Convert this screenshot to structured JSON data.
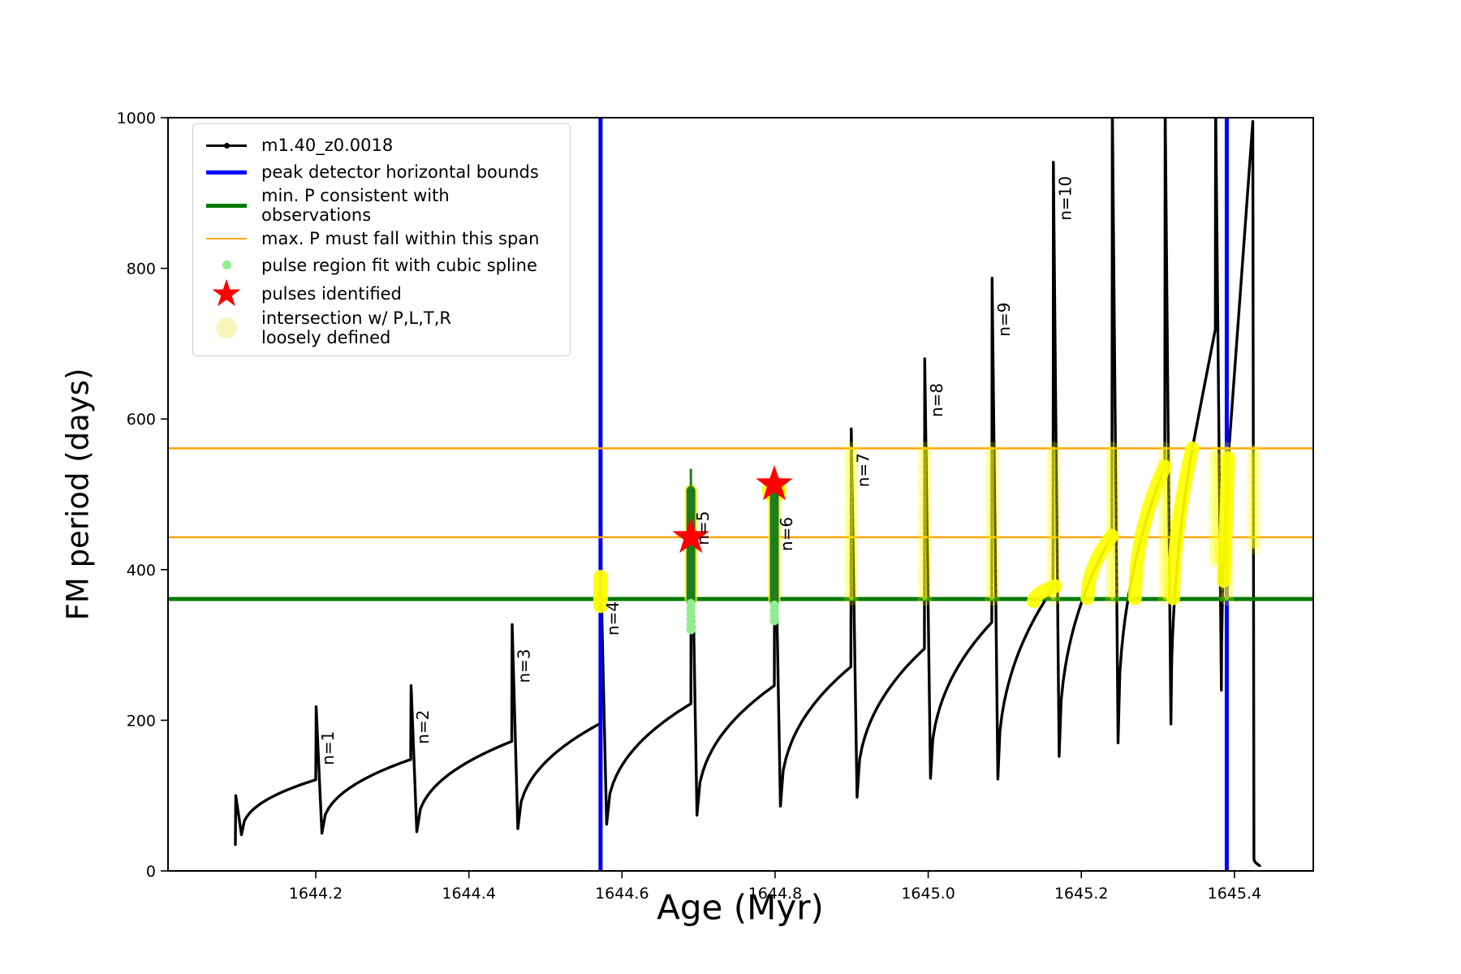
{
  "figure": {
    "xlabel": "Age (Myr)",
    "ylabel": "FM period (days)",
    "x_ticks": [
      1644.2,
      1644.4,
      1644.6,
      1644.8,
      1645.0,
      1645.2,
      1645.4
    ],
    "x_tick_labels": [
      "1644.2",
      "1644.4",
      "1644.6",
      "1644.8",
      "1645.0",
      "1645.2",
      "1645.4"
    ],
    "y_ticks": [
      0,
      200,
      400,
      600,
      800,
      1000
    ],
    "y_tick_labels": [
      "0",
      "200",
      "400",
      "600",
      "800",
      "1000"
    ],
    "background": "#ffffff",
    "spine_color": "#000000"
  },
  "legend": {
    "items": [
      {
        "label": "m1.40_z0.0018",
        "swatch": "line-dot",
        "color": "#000000"
      },
      {
        "label": "peak detector horizontal bounds",
        "swatch": "thick-line",
        "color": "#0000ff"
      },
      {
        "label": "min. P consistent with observations",
        "swatch": "thick-line",
        "color": "#007a00"
      },
      {
        "label": "max. P must fall within this span",
        "swatch": "line",
        "color": "#ffa500"
      },
      {
        "label": "pulse region fit with cubic spline",
        "swatch": "dot",
        "color": "#90ee90"
      },
      {
        "label": "pulses identified",
        "swatch": "star",
        "color": "#ff0000"
      },
      {
        "label": "intersection w/ P,L,T,R\nloosely defined",
        "swatch": "big-dot",
        "color": "#f6f6bb"
      }
    ]
  },
  "chart_data": {
    "type": "line",
    "title": "",
    "xlabel": "Age (Myr)",
    "ylabel": "FM period (days)",
    "xlim": [
      1644.007,
      1645.503
    ],
    "ylim": [
      0,
      1000
    ],
    "grid": false,
    "legend_position": "upper left",
    "series_name": "m1.40_z0.0018",
    "colors": {
      "curve": "#000000",
      "peak_bounds": "#0000ff",
      "min_p": "#007a00",
      "max_p_span": "#ffa500",
      "spline_fit": "#90ee90",
      "spline_bar": "#1e7d1e",
      "pulse_star": "#ff0000",
      "intersection": "#ffff00"
    },
    "hlines": [
      {
        "name": "max_p_upper",
        "y": 561,
        "color": "#ffa500",
        "width": 2.5
      },
      {
        "name": "max_p_lower",
        "y": 443,
        "color": "#ffa500",
        "width": 2.5
      },
      {
        "name": "min_p",
        "y": 361,
        "color": "#007a00",
        "width": 5
      }
    ],
    "vlines": [
      {
        "name": "peak_bound_left",
        "x": 1644.572,
        "color": "#0000ff",
        "width": 5
      },
      {
        "name": "peak_bound_right",
        "x": 1645.39,
        "color": "#0000ff",
        "width": 5
      }
    ],
    "curve_segments": [
      {
        "a0": 1644.095,
        "p0": 35,
        "a1": 1644.0955,
        "p1": 100,
        "exp": 1
      },
      {
        "a0": 1644.0955,
        "p0": 100,
        "a1": 1644.103,
        "p1": 48,
        "exp": 1
      },
      {
        "a0": 1644.103,
        "p0": 48,
        "a1": 1644.2,
        "p1": 121,
        "exp": 0.42
      },
      {
        "a0": 1644.2,
        "p0": 121,
        "a1": 1644.2005,
        "p1": 218,
        "exp": 1
      },
      {
        "a0": 1644.2005,
        "p0": 218,
        "a1": 1644.208,
        "p1": 50,
        "exp": 1
      },
      {
        "a0": 1644.208,
        "p0": 50,
        "a1": 1644.324,
        "p1": 148,
        "exp": 0.42
      },
      {
        "a0": 1644.324,
        "p0": 148,
        "a1": 1644.3245,
        "p1": 246,
        "exp": 1
      },
      {
        "a0": 1644.3245,
        "p0": 246,
        "a1": 1644.332,
        "p1": 52,
        "exp": 1
      },
      {
        "a0": 1644.332,
        "p0": 52,
        "a1": 1644.456,
        "p1": 172,
        "exp": 0.42
      },
      {
        "a0": 1644.456,
        "p0": 172,
        "a1": 1644.4565,
        "p1": 327,
        "exp": 1
      },
      {
        "a0": 1644.4565,
        "p0": 327,
        "a1": 1644.464,
        "p1": 56,
        "exp": 1
      },
      {
        "a0": 1644.464,
        "p0": 56,
        "a1": 1644.572,
        "p1": 196,
        "exp": 0.42
      },
      {
        "a0": 1644.572,
        "p0": 196,
        "a1": 1644.5725,
        "p1": 390,
        "exp": 1
      },
      {
        "a0": 1644.5725,
        "p0": 390,
        "a1": 1644.58,
        "p1": 62,
        "exp": 1
      },
      {
        "a0": 1644.58,
        "p0": 62,
        "a1": 1644.69,
        "p1": 222,
        "exp": 0.42
      },
      {
        "a0": 1644.69,
        "p0": 222,
        "a1": 1644.6905,
        "p1": 510,
        "exp": 1
      },
      {
        "a0": 1644.6905,
        "p0": 510,
        "a1": 1644.698,
        "p1": 74,
        "exp": 1
      },
      {
        "a0": 1644.698,
        "p0": 74,
        "a1": 1644.799,
        "p1": 246,
        "exp": 0.42
      },
      {
        "a0": 1644.799,
        "p0": 246,
        "a1": 1644.7995,
        "p1": 502,
        "exp": 1
      },
      {
        "a0": 1644.7995,
        "p0": 502,
        "a1": 1644.807,
        "p1": 86,
        "exp": 1
      },
      {
        "a0": 1644.807,
        "p0": 86,
        "a1": 1644.899,
        "p1": 271,
        "exp": 0.42
      },
      {
        "a0": 1644.899,
        "p0": 271,
        "a1": 1644.8995,
        "p1": 587,
        "exp": 1
      },
      {
        "a0": 1644.8995,
        "p0": 587,
        "a1": 1644.907,
        "p1": 98,
        "exp": 1
      },
      {
        "a0": 1644.907,
        "p0": 98,
        "a1": 1644.995,
        "p1": 295,
        "exp": 0.42
      },
      {
        "a0": 1644.995,
        "p0": 295,
        "a1": 1644.9955,
        "p1": 680,
        "exp": 1
      },
      {
        "a0": 1644.9955,
        "p0": 680,
        "a1": 1645.003,
        "p1": 123,
        "exp": 1
      },
      {
        "a0": 1645.003,
        "p0": 123,
        "a1": 1645.083,
        "p1": 330,
        "exp": 0.42
      },
      {
        "a0": 1645.083,
        "p0": 330,
        "a1": 1645.0835,
        "p1": 787,
        "exp": 1
      },
      {
        "a0": 1645.0835,
        "p0": 787,
        "a1": 1645.091,
        "p1": 122,
        "exp": 1
      },
      {
        "a0": 1645.091,
        "p0": 122,
        "a1": 1645.163,
        "p1": 375,
        "exp": 0.42
      },
      {
        "a0": 1645.163,
        "p0": 375,
        "a1": 1645.1635,
        "p1": 941,
        "exp": 1
      },
      {
        "a0": 1645.1635,
        "p0": 941,
        "a1": 1645.171,
        "p1": 152,
        "exp": 1
      },
      {
        "a0": 1645.171,
        "p0": 152,
        "a1": 1645.24,
        "p1": 445,
        "exp": 0.42
      },
      {
        "a0": 1645.24,
        "p0": 445,
        "a1": 1645.2405,
        "p1": 1020,
        "exp": 1
      },
      {
        "a0": 1645.2405,
        "p0": 1020,
        "a1": 1645.248,
        "p1": 170,
        "exp": 1
      },
      {
        "a0": 1645.248,
        "p0": 170,
        "a1": 1645.309,
        "p1": 535,
        "exp": 0.42
      },
      {
        "a0": 1645.309,
        "p0": 535,
        "a1": 1645.3095,
        "p1": 1020,
        "exp": 1
      },
      {
        "a0": 1645.3095,
        "p0": 1020,
        "a1": 1645.317,
        "p1": 195,
        "exp": 1
      },
      {
        "a0": 1645.317,
        "p0": 195,
        "a1": 1645.345,
        "p1": 561,
        "exp": 0.45
      },
      {
        "a0": 1645.345,
        "p0": 561,
        "a1": 1645.375,
        "p1": 719,
        "exp": 1
      },
      {
        "a0": 1645.375,
        "p0": 719,
        "a1": 1645.3755,
        "p1": 1020,
        "exp": 1
      },
      {
        "a0": 1645.3755,
        "p0": 1020,
        "a1": 1645.383,
        "p1": 240,
        "exp": 1
      },
      {
        "a0": 1645.383,
        "p0": 240,
        "a1": 1645.392,
        "p1": 548,
        "exp": 0.5
      },
      {
        "a0": 1645.392,
        "p0": 548,
        "a1": 1645.424,
        "p1": 995,
        "exp": 1
      },
      {
        "a0": 1645.424,
        "p0": 995,
        "a1": 1645.4255,
        "p1": 16,
        "exp": 1
      },
      {
        "a0": 1645.4255,
        "p0": 16,
        "a1": 1645.433,
        "p1": 7,
        "exp": 0.5
      }
    ],
    "pulses": [
      {
        "n": "n=1",
        "age": 1644.2,
        "peak": 218
      },
      {
        "n": "n=2",
        "age": 1644.324,
        "peak": 246
      },
      {
        "n": "n=3",
        "age": 1644.456,
        "peak": 327
      },
      {
        "n": "n=4",
        "age": 1644.572,
        "peak": 390
      },
      {
        "n": "n=5",
        "age": 1644.69,
        "peak": 510
      },
      {
        "n": "n=6",
        "age": 1644.799,
        "peak": 502
      },
      {
        "n": "n=7",
        "age": 1644.899,
        "peak": 587
      },
      {
        "n": "n=8",
        "age": 1644.995,
        "peak": 680
      },
      {
        "n": "n=9",
        "age": 1645.083,
        "peak": 787
      },
      {
        "n": "n=10",
        "age": 1645.163,
        "peak": 941
      }
    ],
    "yellow_arcs": [
      {
        "a0": 1645.138,
        "p0": 358,
        "a1": 1645.166,
        "p1": 378,
        "exp": 0.5
      },
      {
        "a0": 1645.208,
        "p0": 362,
        "a1": 1645.24,
        "p1": 445,
        "exp": 0.5
      },
      {
        "a0": 1645.27,
        "p0": 362,
        "a1": 1645.309,
        "p1": 537,
        "exp": 0.5
      },
      {
        "a0": 1645.32,
        "p0": 362,
        "a1": 1645.345,
        "p1": 561,
        "exp": 0.55
      },
      {
        "a0": 1645.386,
        "p0": 385,
        "a1": 1645.392,
        "p1": 548,
        "exp": 1
      }
    ],
    "yellow_columns": [
      {
        "age": 1644.8995,
        "p0": 362,
        "p1": 561
      },
      {
        "age": 1644.9955,
        "p0": 362,
        "p1": 561
      },
      {
        "age": 1645.0835,
        "p0": 362,
        "p1": 561
      },
      {
        "age": 1645.1635,
        "p0": 362,
        "p1": 561
      },
      {
        "age": 1645.2405,
        "p0": 362,
        "p1": 561
      },
      {
        "age": 1645.3095,
        "p0": 362,
        "p1": 561
      },
      {
        "age": 1645.3755,
        "p0": 410,
        "p1": 561
      },
      {
        "age": 1645.39,
        "p0": 362,
        "p1": 561
      },
      {
        "age": 1645.4255,
        "p0": 430,
        "p1": 561
      }
    ],
    "yellow_blob_n4": {
      "age": 1644.572,
      "p0": 352,
      "p1": 390,
      "width": 18
    },
    "yellow_star_halo": {
      "age": 1644.799,
      "p": 505,
      "r": 15
    },
    "yellow_bar_backing": [
      {
        "age": 1644.69,
        "p0": 361,
        "p1": 505
      },
      {
        "age": 1644.799,
        "p0": 361,
        "p1": 500
      }
    ],
    "green_bars": [
      {
        "age": 1644.69,
        "p0": 357,
        "p1": 505,
        "thin_to": 534
      },
      {
        "age": 1644.799,
        "p0": 357,
        "p1": 500,
        "thin_to": 515
      }
    ],
    "lightgreen_dot_chains": [
      {
        "age": 1644.69,
        "p0": 320,
        "p1": 356
      },
      {
        "age": 1644.799,
        "p0": 332,
        "p1": 356
      }
    ],
    "red_stars": [
      {
        "age": 1644.69,
        "p": 443
      },
      {
        "age": 1644.799,
        "p": 513
      }
    ]
  }
}
